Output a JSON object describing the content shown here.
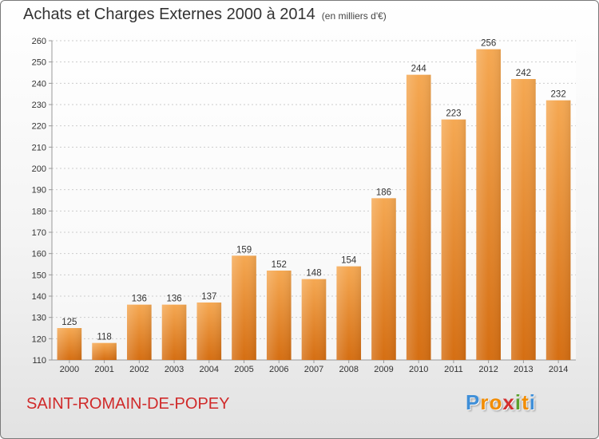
{
  "header": {
    "title": "Achats et Charges Externes 2000 à 2014",
    "unit": "(en milliers d'€)"
  },
  "footer": {
    "town": "SAINT-ROMAIN-DE-POPEY",
    "brand_letters": [
      "P",
      "r",
      "o",
      "x",
      "i",
      "t",
      "i"
    ],
    "brand_colors": [
      "#3f8fd8",
      "#f28c00",
      "#f28c00",
      "#d32f2f",
      "#5aa02c",
      "#f28c00",
      "#3f8fd8"
    ]
  },
  "colors": {
    "bar_light": "#f5a852",
    "bar_dark": "#d56e12",
    "grid": "#cccccc",
    "axis": "#999999"
  },
  "chart_data": {
    "type": "bar",
    "title": "Achats et Charges Externes 2000 à 2014",
    "subtitle": "(en milliers d'€)",
    "categories": [
      "2000",
      "2001",
      "2002",
      "2003",
      "2004",
      "2005",
      "2006",
      "2007",
      "2008",
      "2009",
      "2010",
      "2011",
      "2012",
      "2013",
      "2014"
    ],
    "values": [
      125,
      118,
      136,
      136,
      137,
      159,
      152,
      148,
      154,
      186,
      244,
      223,
      256,
      242,
      232
    ],
    "ylim": [
      110,
      260
    ],
    "yticks": [
      110,
      120,
      130,
      140,
      150,
      160,
      170,
      180,
      190,
      200,
      210,
      220,
      230,
      240,
      250,
      260
    ],
    "grid": true,
    "legend": "none"
  }
}
